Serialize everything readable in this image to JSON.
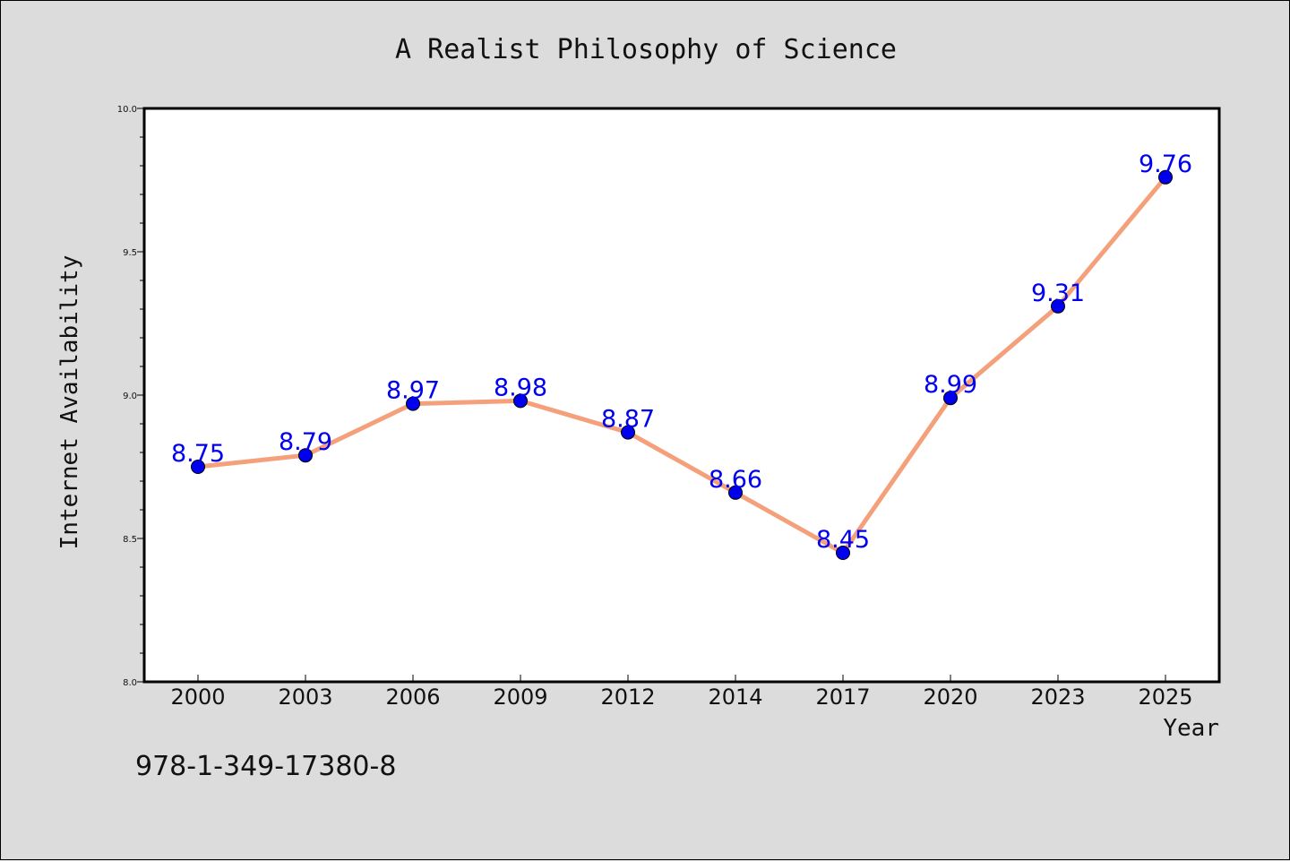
{
  "chart_data": {
    "type": "line",
    "title": "A Realist Philosophy of Science",
    "xlabel": "Year",
    "ylabel": "Internet Availability",
    "categories": [
      "2000",
      "2003",
      "2006",
      "2009",
      "2012",
      "2014",
      "2017",
      "2020",
      "2023",
      "2025"
    ],
    "series": [
      {
        "values": [
          8.75,
          8.79,
          8.97,
          8.98,
          8.87,
          8.66,
          8.45,
          8.99,
          9.31,
          9.76
        ]
      }
    ],
    "data_labels": [
      "8.75",
      "8.79",
      "8.97",
      "8.98",
      "8.87",
      "8.66",
      "8.45",
      "8.99",
      "9.31",
      "9.76"
    ],
    "ylim": [
      8.0,
      10.0
    ],
    "yticks": [
      "8.0",
      "8.5",
      "9.0",
      "9.5",
      "10.0"
    ],
    "ytick_values": [
      8.0,
      8.5,
      9.0,
      9.5,
      10.0
    ],
    "y_minor_step": 0.1,
    "grid": false,
    "line_color": "#f4a07a",
    "marker_color": "#0000ee",
    "label_color": "#0000ee"
  },
  "footer": {
    "isbn": "978-1-349-17380-8"
  }
}
